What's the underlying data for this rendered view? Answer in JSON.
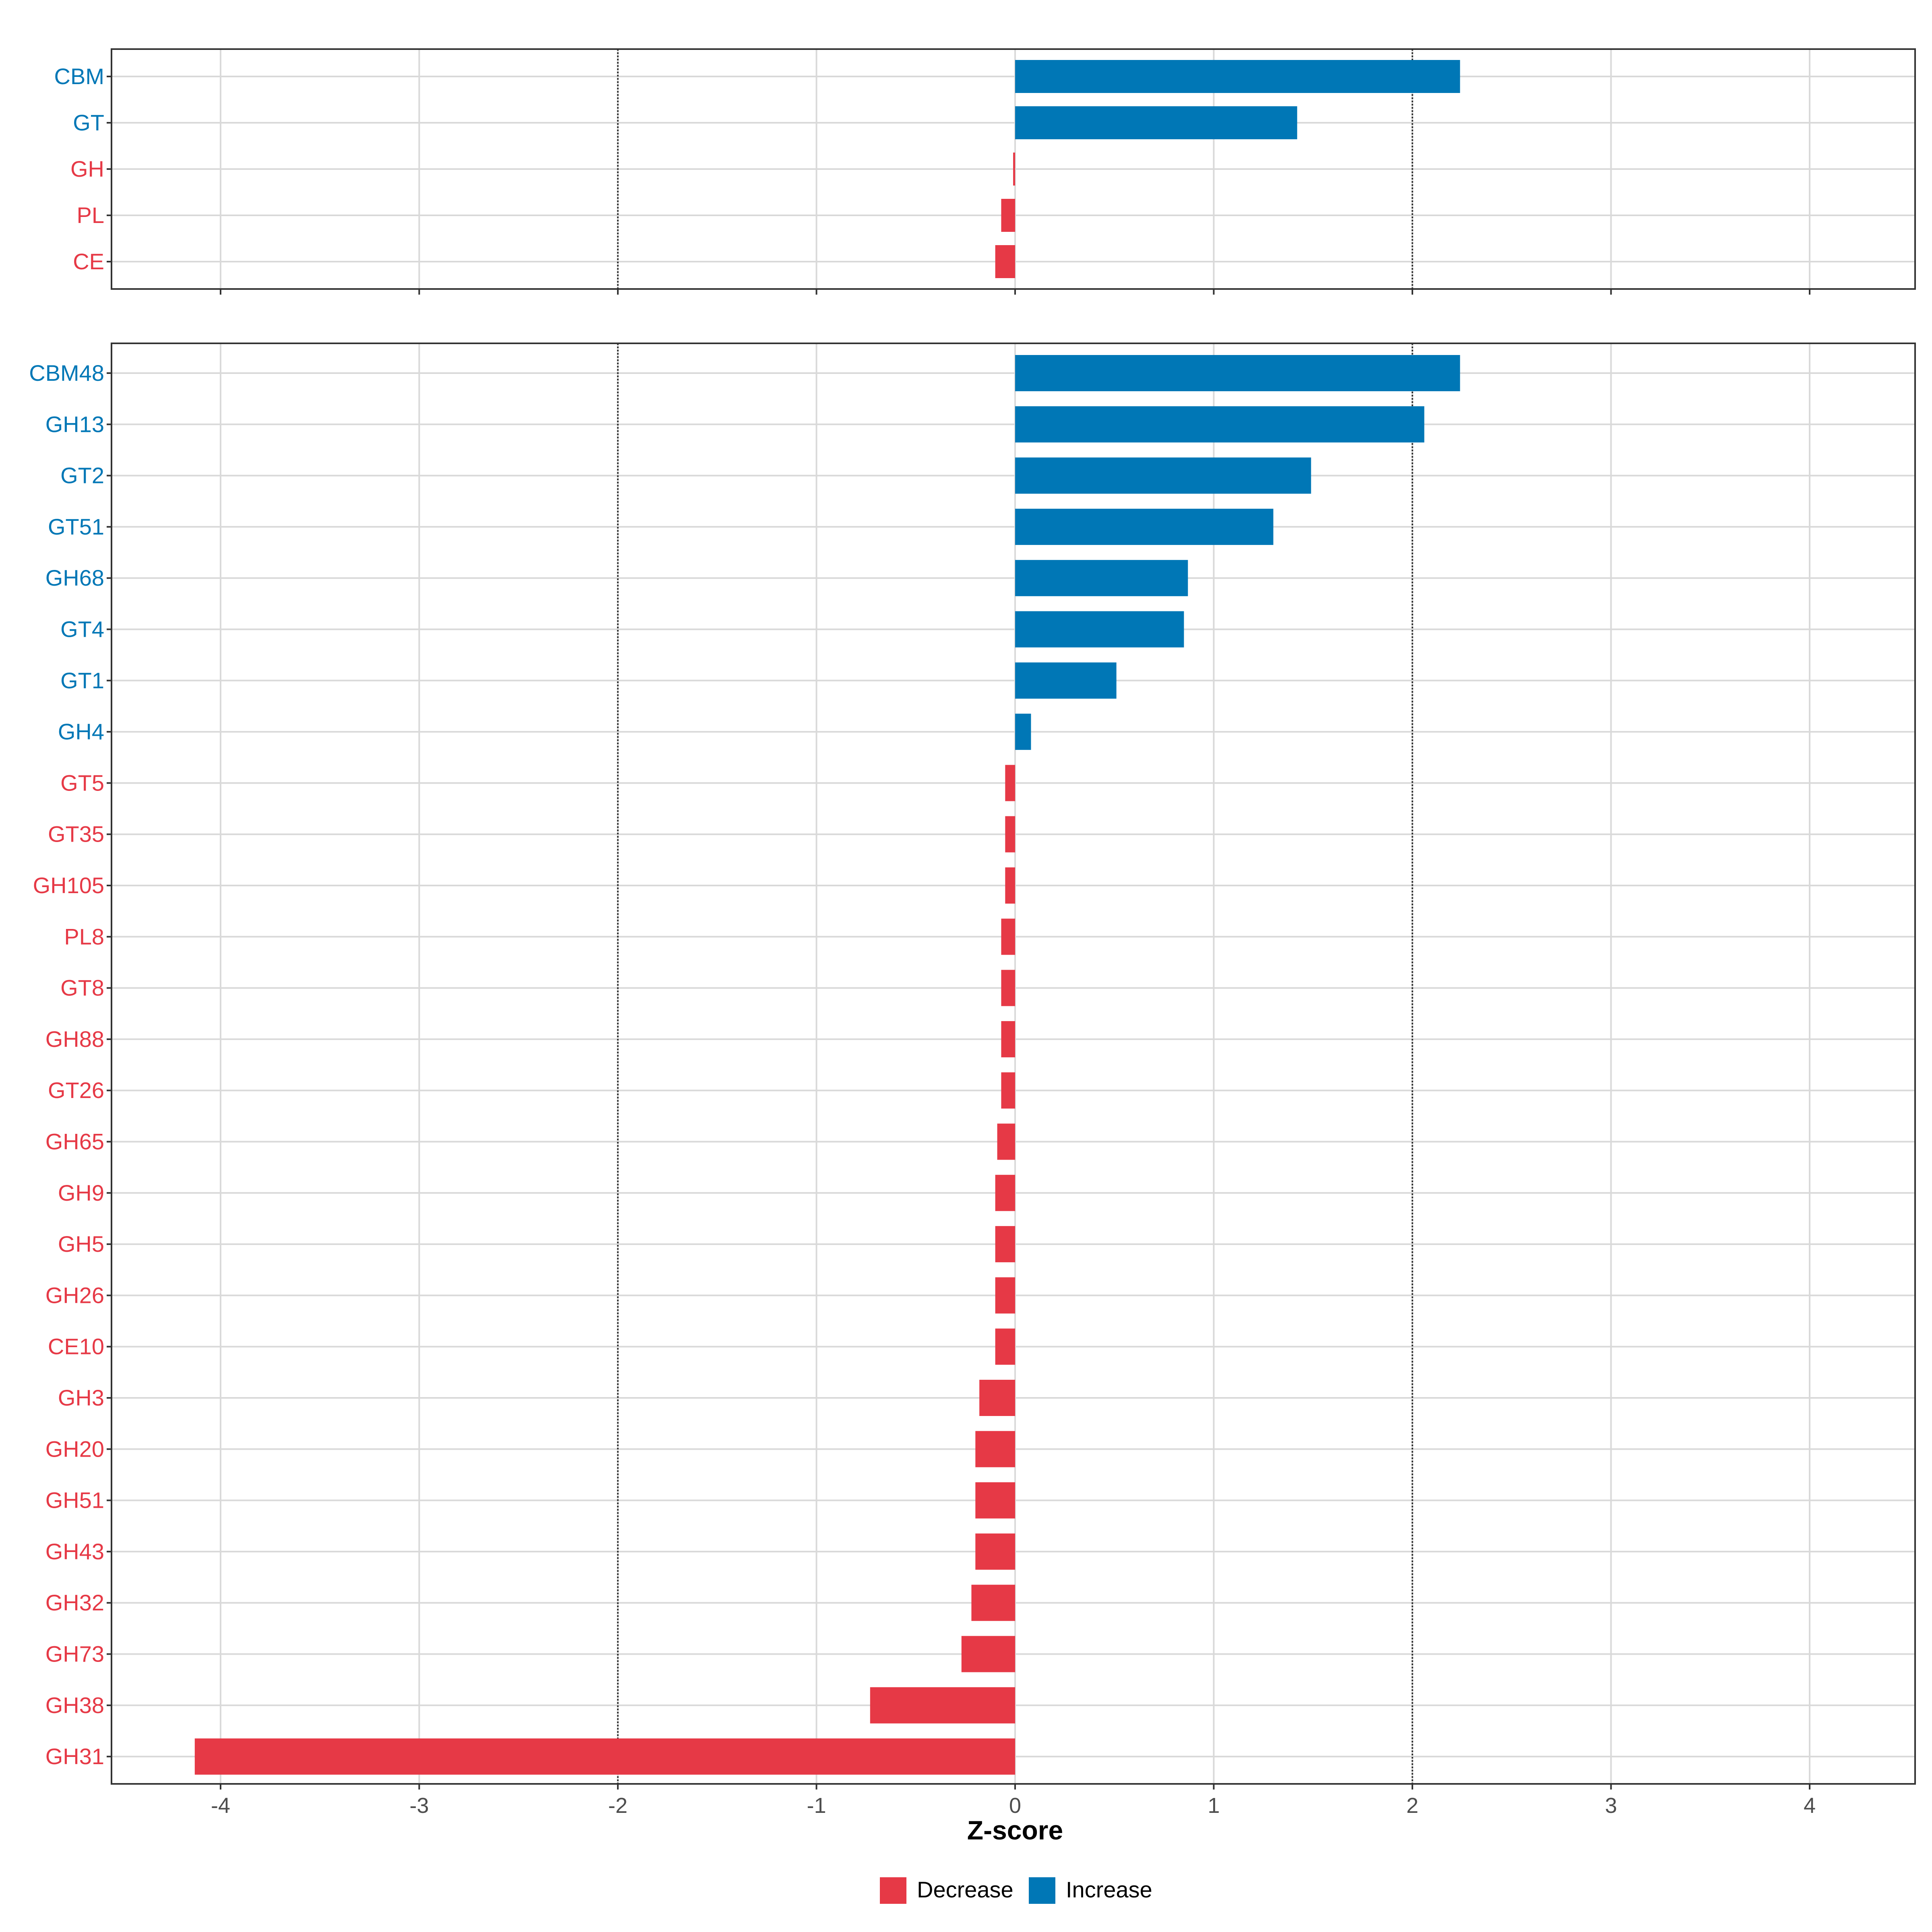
{
  "chart_data": [
    {
      "type": "bar",
      "orientation": "horizontal",
      "panel": "top",
      "categories": [
        "CBM",
        "GT",
        "GH",
        "PL",
        "CE"
      ],
      "values": [
        2.24,
        1.42,
        -0.01,
        -0.07,
        -0.1
      ],
      "xlim": [
        -4.5,
        4.5
      ],
      "reference_lines": [
        -2,
        2
      ],
      "grid": true
    },
    {
      "type": "bar",
      "orientation": "horizontal",
      "panel": "bottom",
      "categories": [
        "CBM48",
        "GH13",
        "GT2",
        "GT51",
        "GH68",
        "GT4",
        "GT1",
        "GH4",
        "GT5",
        "GT35",
        "GH105",
        "PL8",
        "GT8",
        "GH88",
        "GT26",
        "GH65",
        "GH9",
        "GH5",
        "GH26",
        "CE10",
        "GH3",
        "GH20",
        "GH51",
        "GH43",
        "GH32",
        "GH73",
        "GH38",
        "GH31"
      ],
      "values": [
        2.24,
        2.06,
        1.49,
        1.3,
        0.87,
        0.85,
        0.51,
        0.08,
        -0.05,
        -0.05,
        -0.05,
        -0.07,
        -0.07,
        -0.07,
        -0.07,
        -0.09,
        -0.1,
        -0.1,
        -0.1,
        -0.1,
        -0.18,
        -0.2,
        -0.2,
        -0.2,
        -0.22,
        -0.27,
        -0.73,
        -4.13
      ],
      "xlim": [
        -4.5,
        4.5
      ],
      "xticks": [
        -4,
        -3,
        -2,
        -1,
        0,
        1,
        2,
        3,
        4
      ],
      "xtick_labels": [
        "-4",
        "-3",
        "-2",
        "-1",
        "0",
        "1",
        "2",
        "3",
        "4"
      ],
      "xlabel": "Z-score",
      "reference_lines": [
        -2,
        2
      ],
      "grid": true
    }
  ],
  "legend": {
    "placement": "bottom",
    "items": [
      {
        "label": "Decrease",
        "color": "#E63946"
      },
      {
        "label": "Increase",
        "color": "#0077B6"
      }
    ]
  },
  "colors": {
    "decrease": "#E63946",
    "increase": "#0077B6",
    "grid": "#d9d9d9",
    "reference_line": "#333333"
  }
}
